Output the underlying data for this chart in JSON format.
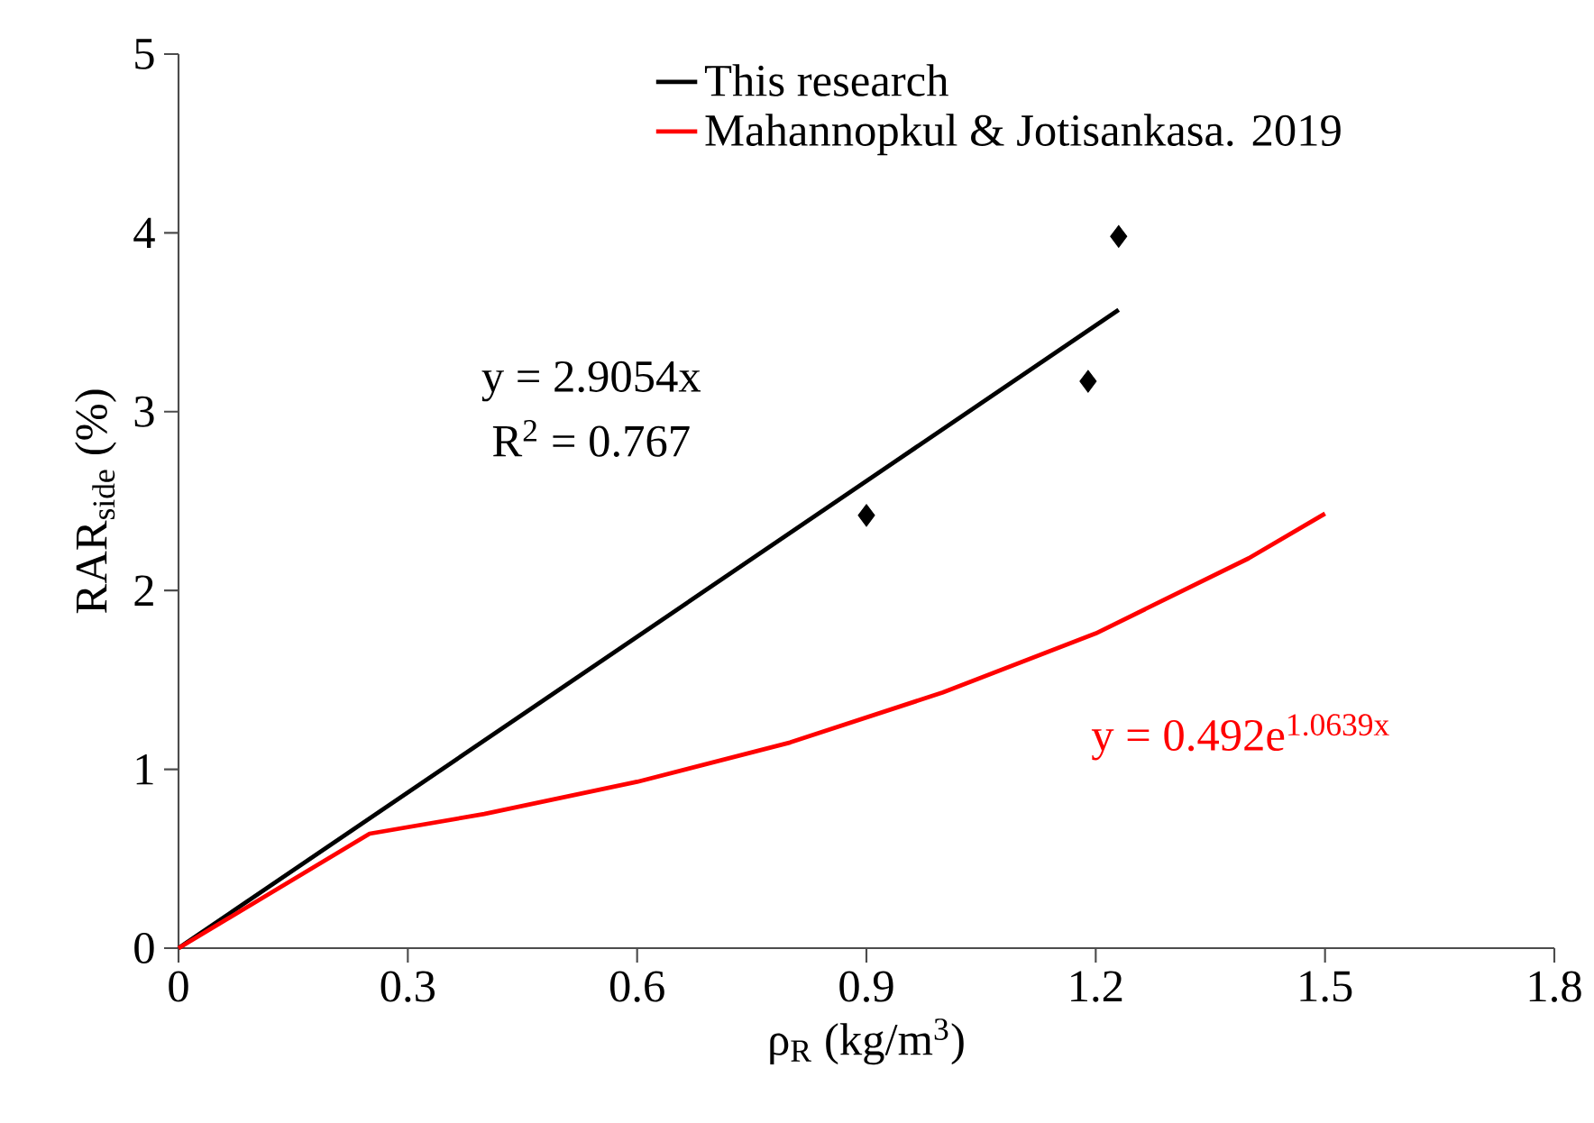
{
  "chart_data": {
    "type": "line",
    "xlabel": "ρ$_{R}$ (kg/m$^{3}$)",
    "ylabel": "RAR$_{side}$ (%)",
    "xlim": [
      0,
      1.8
    ],
    "ylim": [
      0,
      5
    ],
    "xticks": [
      0,
      0.3,
      0.6,
      0.9,
      1.2,
      1.5,
      1.8
    ],
    "yticks": [
      0,
      1,
      2,
      3,
      4,
      5
    ],
    "grid": false,
    "legend": "top",
    "marker": "none",
    "line_style": "solid",
    "series": [
      {
        "name": "This research",
        "color": "#000000",
        "x": [
          0,
          1.23
        ],
        "values": [
          0,
          3.57
        ]
      },
      {
        "name": "Mahannopkul & Jotisankasa. 2019",
        "color": "#ff0000",
        "x": [
          0,
          0.25,
          0.4,
          0.6,
          0.8,
          1.0,
          1.2,
          1.4,
          1.5
        ],
        "values": [
          0,
          0.64,
          0.75,
          0.93,
          1.15,
          1.43,
          1.76,
          2.18,
          2.43
        ]
      },
      {
        "type": "scatter",
        "color": "#000000",
        "marker": "diamond",
        "x": [
          0.9,
          1.19,
          1.23
        ],
        "values": [
          2.42,
          3.17,
          3.98
        ]
      }
    ],
    "annotations": [
      "y = 2.9054x",
      "R$^{2}$ = 0.767",
      "y = 0.492e$^{1.0639x}$"
    ]
  }
}
